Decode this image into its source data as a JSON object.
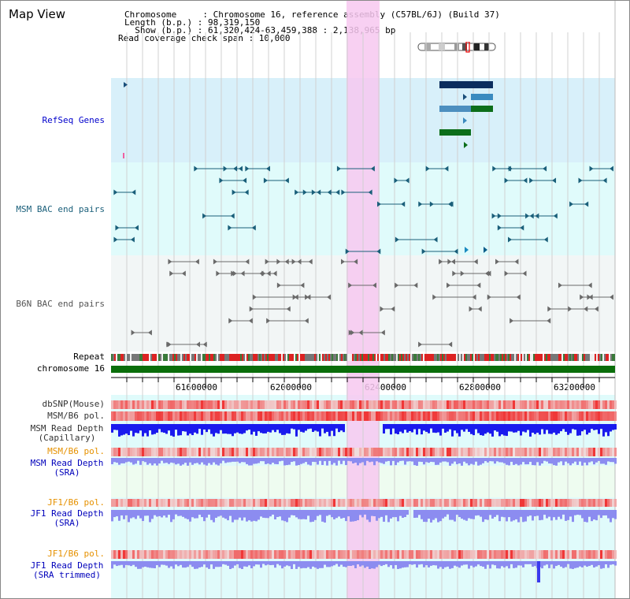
{
  "panel": {
    "title": "Map View"
  },
  "header": {
    "rows": [
      "Chromosome     : Chromosome 16, reference assembly (C57BL/6J) (Build 37)",
      "Length (b.p.) : 98,319,150",
      "  Show (b.p.) : 61,320,424-63,459,388 : 2,138,965 bp",
      "Read coverage check span : 10,000"
    ]
  },
  "tracks": {
    "refseq": {
      "label": "RefSeq Genes",
      "color": "#0000cc"
    },
    "msm_bac": {
      "label": "MSM BAC end pairs",
      "color": "#1a5f7a"
    },
    "b6n_bac": {
      "label": "B6N BAC end pairs",
      "color": "#555555"
    },
    "repeat": {
      "label": "Repeat"
    },
    "chromosome": {
      "label": "chromosome 16"
    },
    "dbsnp": {
      "label": "dbSNP(Mouse)"
    },
    "msm_pol": {
      "label": "MSM/B6 pol."
    },
    "msm_depth_cap": {
      "label_1": "MSM Read Depth",
      "label_2": "(Capillary)"
    },
    "msm_pol2": {
      "label": "MSM/B6 pol."
    },
    "msm_depth_sra": {
      "label_1": "MSM Read Depth",
      "label_2": "(SRA)"
    },
    "jf1_pol": {
      "label": "JF1/B6 pol."
    },
    "jf1_depth_sra": {
      "label_1": "JF1 Read Depth",
      "label_2": "(SRA)"
    },
    "jf1_pol2": {
      "label": "JF1/B6 pol."
    },
    "jf1_depth_trim": {
      "label_1": "JF1 Read Depth",
      "label_2": "(SRA trimmed)"
    }
  },
  "axis": {
    "ticks": [
      "61600000",
      "62000000",
      "62400000",
      "62800000",
      "63200000"
    ]
  },
  "colors": {
    "highlight": "#f7c8f0",
    "refseq_bg": "#d8f0fa",
    "msm_bg": "#e0fbfb",
    "b6n_bg": "#f2f6f6",
    "chromosome_bar": "#0a6e0a",
    "depth_blue": "#1a1aee",
    "depth_light": "#8c8cf0",
    "pol_red": "#f05050",
    "sra_bg": "#eefcf0"
  }
}
